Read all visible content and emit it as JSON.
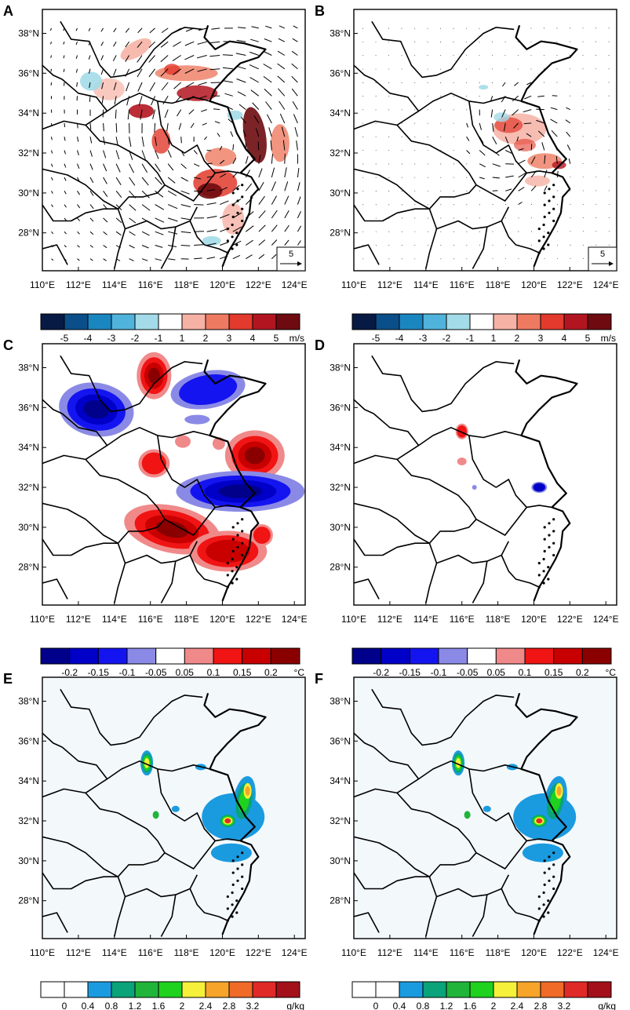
{
  "figure": {
    "panels": [
      {
        "letter": "A",
        "content": "wind_anomaly",
        "scale_label": "5"
      },
      {
        "letter": "B",
        "content": "wind_anomaly_small",
        "scale_label": "5"
      },
      {
        "letter": "C",
        "content": "temperature_large",
        "scale_label": ""
      },
      {
        "letter": "D",
        "content": "temperature_small",
        "scale_label": ""
      },
      {
        "letter": "E",
        "content": "mixing_ratio",
        "scale_label": ""
      },
      {
        "letter": "F",
        "content": "mixing_ratio",
        "scale_label": ""
      }
    ],
    "lon_ticks": [
      "110°E",
      "112°E",
      "114°E",
      "116°E",
      "118°E",
      "120°E",
      "122°E",
      "124°E"
    ],
    "lat_ticks": [
      "38°N",
      "36°N",
      "34°N",
      "32°N",
      "30°N",
      "28°N"
    ],
    "colorbars": {
      "wind": {
        "colors": [
          "#071a44",
          "#0a4f8a",
          "#1a86c0",
          "#4fb3dc",
          "#a3dbe8",
          "#ffffff",
          "#f6b2a5",
          "#ee7a62",
          "#e23a2c",
          "#b31520",
          "#6e0b10"
        ],
        "labels": [
          "-5",
          "-4",
          "-3",
          "-2",
          "-1",
          "1",
          "2",
          "3",
          "4",
          "5"
        ],
        "unit": "m/s"
      },
      "temperature": {
        "colors": [
          "#00008a",
          "#0000c8",
          "#1414f0",
          "#8a8ae6",
          "#ffffff",
          "#f08a8a",
          "#f01414",
          "#c80000",
          "#8a0000"
        ],
        "labels": [
          "-0.2",
          "-0.15",
          "-0.1",
          "-0.05",
          "0.05",
          "0.1",
          "0.15",
          "0.2"
        ],
        "unit": "°C"
      },
      "moisture": {
        "colors": [
          "#ffffff",
          "#ffffff",
          "#1a9be0",
          "#0aa37a",
          "#20b43a",
          "#1ed21e",
          "#f5f03a",
          "#f6a42a",
          "#f06a28",
          "#e02a28",
          "#a3101a"
        ],
        "labels": [
          "0",
          "0.4",
          "0.8",
          "1.2",
          "1.6",
          "2",
          "2.4",
          "2.8",
          "3.2"
        ],
        "unit": "g/kg"
      }
    }
  }
}
